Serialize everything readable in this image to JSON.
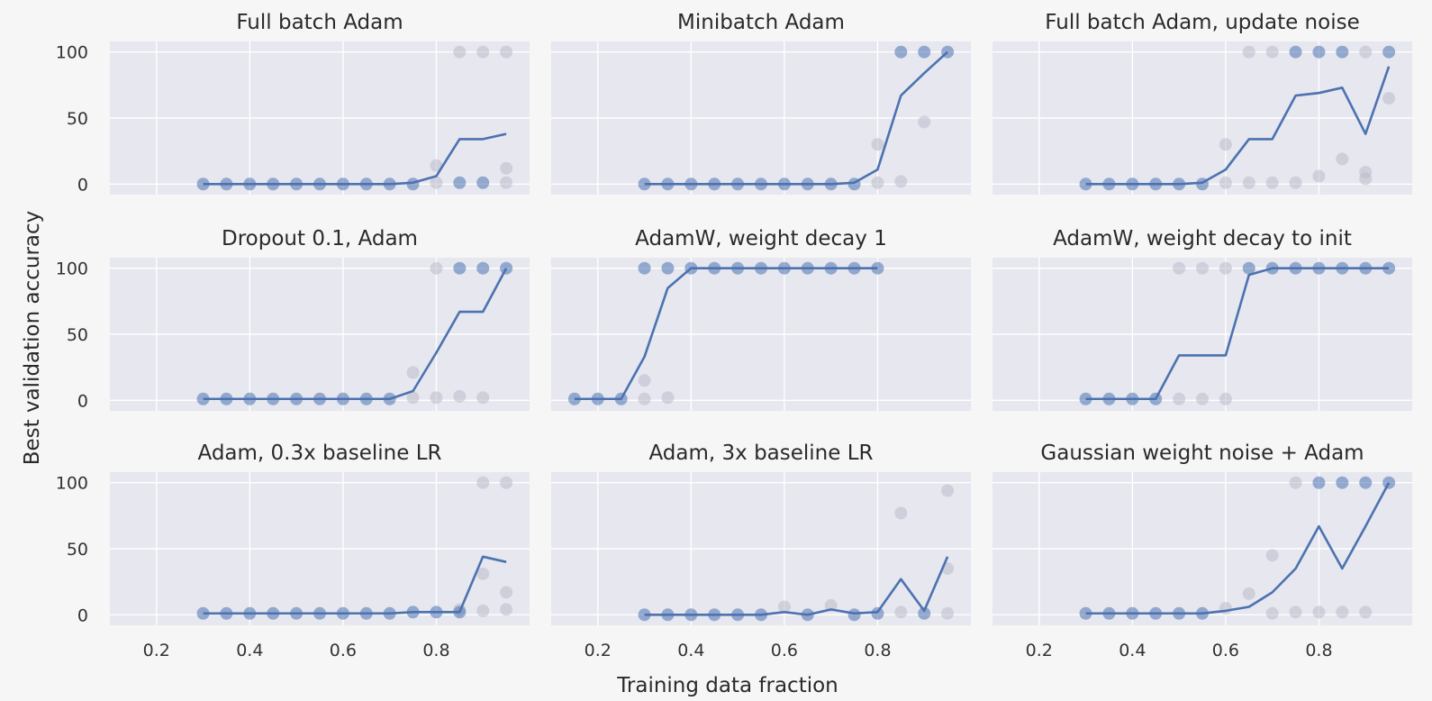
{
  "chart_data": {
    "type": "line",
    "ylabel": "Best validation accuracy",
    "xlabel": "Training data fraction",
    "xlim": [
      0.1,
      1.0
    ],
    "ylim": [
      -8,
      108
    ],
    "xticks": [
      "0.2",
      "0.4",
      "0.6",
      "0.8"
    ],
    "xtick_values": [
      0.2,
      0.4,
      0.6,
      0.8
    ],
    "yticks": [
      "0",
      "50",
      "100"
    ],
    "ytick_values": [
      0,
      50,
      100
    ],
    "grid": true,
    "colors": {
      "line": "#4c72b0",
      "point_blue": "#4c72b0",
      "point_gray": "#b9bcc8",
      "background": "#e6e7ef"
    },
    "panels": [
      {
        "title": "Full batch Adam",
        "line": {
          "x": [
            0.3,
            0.35,
            0.4,
            0.45,
            0.5,
            0.55,
            0.6,
            0.65,
            0.7,
            0.75,
            0.8,
            0.85,
            0.9,
            0.95
          ],
          "y": [
            0,
            0,
            0,
            0,
            0,
            0,
            0,
            0,
            0,
            1,
            6,
            34,
            34,
            38
          ]
        },
        "points_blue": [
          [
            0.3,
            0
          ],
          [
            0.35,
            0
          ],
          [
            0.4,
            0
          ],
          [
            0.45,
            0
          ],
          [
            0.5,
            0
          ],
          [
            0.55,
            0
          ],
          [
            0.6,
            0
          ],
          [
            0.65,
            0
          ],
          [
            0.7,
            0
          ],
          [
            0.75,
            0
          ],
          [
            0.85,
            1
          ],
          [
            0.9,
            1
          ]
        ],
        "points_gray": [
          [
            0.8,
            14
          ],
          [
            0.8,
            1
          ],
          [
            0.85,
            100
          ],
          [
            0.9,
            100
          ],
          [
            0.95,
            100
          ],
          [
            0.95,
            12
          ],
          [
            0.95,
            1
          ]
        ]
      },
      {
        "title": "Minibatch Adam",
        "line": {
          "x": [
            0.3,
            0.35,
            0.4,
            0.45,
            0.5,
            0.55,
            0.6,
            0.65,
            0.7,
            0.75,
            0.8,
            0.85,
            0.9,
            0.95
          ],
          "y": [
            0,
            0,
            0,
            0,
            0,
            0,
            0,
            0,
            0,
            1,
            11,
            67,
            84,
            100
          ]
        },
        "points_blue": [
          [
            0.3,
            0
          ],
          [
            0.35,
            0
          ],
          [
            0.4,
            0
          ],
          [
            0.45,
            0
          ],
          [
            0.5,
            0
          ],
          [
            0.55,
            0
          ],
          [
            0.6,
            0
          ],
          [
            0.65,
            0
          ],
          [
            0.7,
            0
          ],
          [
            0.75,
            0
          ],
          [
            0.85,
            100
          ],
          [
            0.9,
            100
          ],
          [
            0.95,
            100
          ]
        ],
        "points_gray": [
          [
            0.8,
            30
          ],
          [
            0.8,
            1
          ],
          [
            0.85,
            2
          ],
          [
            0.9,
            47
          ]
        ]
      },
      {
        "title": "Full batch Adam, update noise",
        "line": {
          "x": [
            0.3,
            0.35,
            0.4,
            0.45,
            0.5,
            0.55,
            0.6,
            0.65,
            0.7,
            0.75,
            0.8,
            0.85,
            0.9,
            0.95
          ],
          "y": [
            0,
            0,
            0,
            0,
            0,
            1,
            11,
            34,
            34,
            67,
            69,
            73,
            38,
            89
          ]
        },
        "points_blue": [
          [
            0.3,
            0
          ],
          [
            0.35,
            0
          ],
          [
            0.4,
            0
          ],
          [
            0.45,
            0
          ],
          [
            0.5,
            0
          ],
          [
            0.55,
            0
          ],
          [
            0.75,
            100
          ],
          [
            0.8,
            100
          ],
          [
            0.85,
            100
          ],
          [
            0.95,
            100
          ]
        ],
        "points_gray": [
          [
            0.6,
            30
          ],
          [
            0.6,
            1
          ],
          [
            0.65,
            100
          ],
          [
            0.65,
            1
          ],
          [
            0.7,
            100
          ],
          [
            0.7,
            1
          ],
          [
            0.75,
            1
          ],
          [
            0.8,
            6
          ],
          [
            0.85,
            19
          ],
          [
            0.9,
            100
          ],
          [
            0.9,
            9
          ],
          [
            0.9,
            4
          ],
          [
            0.95,
            65
          ]
        ]
      },
      {
        "title": "Dropout 0.1, Adam",
        "line": {
          "x": [
            0.3,
            0.35,
            0.4,
            0.45,
            0.5,
            0.55,
            0.6,
            0.65,
            0.7,
            0.75,
            0.8,
            0.85,
            0.9,
            0.95
          ],
          "y": [
            1,
            1,
            1,
            1,
            1,
            1,
            1,
            1,
            1,
            7,
            36,
            67,
            67,
            100
          ]
        },
        "points_blue": [
          [
            0.3,
            1
          ],
          [
            0.35,
            1
          ],
          [
            0.4,
            1
          ],
          [
            0.45,
            1
          ],
          [
            0.5,
            1
          ],
          [
            0.55,
            1
          ],
          [
            0.6,
            1
          ],
          [
            0.65,
            1
          ],
          [
            0.7,
            1
          ],
          [
            0.85,
            100
          ],
          [
            0.9,
            100
          ],
          [
            0.95,
            100
          ]
        ],
        "points_gray": [
          [
            0.75,
            21
          ],
          [
            0.75,
            2
          ],
          [
            0.8,
            100
          ],
          [
            0.8,
            2
          ],
          [
            0.85,
            3
          ],
          [
            0.9,
            2
          ]
        ]
      },
      {
        "title": "AdamW, weight decay 1",
        "line": {
          "x": [
            0.15,
            0.2,
            0.25,
            0.3,
            0.35,
            0.4,
            0.45,
            0.5,
            0.55,
            0.6,
            0.65,
            0.7,
            0.75,
            0.8
          ],
          "y": [
            1,
            1,
            1,
            33,
            85,
            100,
            100,
            100,
            100,
            100,
            100,
            100,
            100,
            100
          ]
        },
        "points_blue": [
          [
            0.15,
            1
          ],
          [
            0.2,
            1
          ],
          [
            0.25,
            1
          ],
          [
            0.3,
            100
          ],
          [
            0.35,
            100
          ],
          [
            0.4,
            100
          ],
          [
            0.45,
            100
          ],
          [
            0.5,
            100
          ],
          [
            0.55,
            100
          ],
          [
            0.6,
            100
          ],
          [
            0.65,
            100
          ],
          [
            0.7,
            100
          ],
          [
            0.75,
            100
          ],
          [
            0.8,
            100
          ]
        ],
        "points_gray": [
          [
            0.3,
            15
          ],
          [
            0.3,
            1
          ],
          [
            0.35,
            2
          ]
        ]
      },
      {
        "title": "AdamW, weight decay to init",
        "line": {
          "x": [
            0.3,
            0.35,
            0.4,
            0.45,
            0.5,
            0.55,
            0.6,
            0.65,
            0.7,
            0.75,
            0.8,
            0.85,
            0.9,
            0.95
          ],
          "y": [
            1,
            1,
            1,
            1,
            34,
            34,
            34,
            95,
            100,
            100,
            100,
            100,
            100,
            100
          ]
        },
        "points_blue": [
          [
            0.3,
            1
          ],
          [
            0.35,
            1
          ],
          [
            0.4,
            1
          ],
          [
            0.45,
            1
          ],
          [
            0.65,
            100
          ],
          [
            0.7,
            100
          ],
          [
            0.75,
            100
          ],
          [
            0.8,
            100
          ],
          [
            0.85,
            100
          ],
          [
            0.9,
            100
          ],
          [
            0.95,
            100
          ]
        ],
        "points_gray": [
          [
            0.5,
            100
          ],
          [
            0.5,
            1
          ],
          [
            0.55,
            100
          ],
          [
            0.55,
            1
          ],
          [
            0.6,
            100
          ],
          [
            0.6,
            1
          ]
        ]
      },
      {
        "title": "Adam, 0.3x baseline LR",
        "line": {
          "x": [
            0.3,
            0.35,
            0.4,
            0.45,
            0.5,
            0.55,
            0.6,
            0.65,
            0.7,
            0.75,
            0.8,
            0.85,
            0.9,
            0.95
          ],
          "y": [
            1,
            1,
            1,
            1,
            1,
            1,
            1,
            1,
            1,
            2,
            2,
            2,
            44,
            40
          ]
        },
        "points_blue": [
          [
            0.3,
            1
          ],
          [
            0.35,
            1
          ],
          [
            0.4,
            1
          ],
          [
            0.45,
            1
          ],
          [
            0.5,
            1
          ],
          [
            0.55,
            1
          ],
          [
            0.6,
            1
          ],
          [
            0.65,
            1
          ],
          [
            0.7,
            1
          ],
          [
            0.75,
            2
          ],
          [
            0.8,
            2
          ],
          [
            0.85,
            2
          ]
        ],
        "points_gray": [
          [
            0.85,
            4
          ],
          [
            0.9,
            100
          ],
          [
            0.9,
            31
          ],
          [
            0.9,
            3
          ],
          [
            0.95,
            100
          ],
          [
            0.95,
            17
          ],
          [
            0.95,
            4
          ]
        ]
      },
      {
        "title": "Adam, 3x baseline LR",
        "line": {
          "x": [
            0.3,
            0.35,
            0.4,
            0.45,
            0.5,
            0.55,
            0.6,
            0.65,
            0.7,
            0.75,
            0.8,
            0.85,
            0.9,
            0.95
          ],
          "y": [
            0,
            0,
            0,
            0,
            0,
            0,
            2,
            0,
            4,
            1,
            2,
            27,
            3,
            44
          ]
        },
        "points_blue": [
          [
            0.3,
            0
          ],
          [
            0.35,
            0
          ],
          [
            0.4,
            0
          ],
          [
            0.45,
            0
          ],
          [
            0.5,
            0
          ],
          [
            0.55,
            0
          ],
          [
            0.65,
            0
          ],
          [
            0.75,
            0
          ],
          [
            0.8,
            1
          ],
          [
            0.9,
            1
          ]
        ],
        "points_gray": [
          [
            0.6,
            6
          ],
          [
            0.7,
            7
          ],
          [
            0.85,
            77
          ],
          [
            0.85,
            2
          ],
          [
            0.95,
            94
          ],
          [
            0.95,
            35
          ],
          [
            0.95,
            1
          ]
        ]
      },
      {
        "title": "Gaussian weight noise + Adam",
        "line": {
          "x": [
            0.3,
            0.35,
            0.4,
            0.45,
            0.5,
            0.55,
            0.6,
            0.65,
            0.7,
            0.75,
            0.8,
            0.85,
            0.9,
            0.95
          ],
          "y": [
            1,
            1,
            1,
            1,
            1,
            1,
            3,
            6,
            17,
            35,
            67,
            35,
            67,
            100
          ]
        },
        "points_blue": [
          [
            0.3,
            1
          ],
          [
            0.35,
            1
          ],
          [
            0.4,
            1
          ],
          [
            0.45,
            1
          ],
          [
            0.5,
            1
          ],
          [
            0.55,
            1
          ],
          [
            0.8,
            100
          ],
          [
            0.85,
            100
          ],
          [
            0.9,
            100
          ],
          [
            0.95,
            100
          ]
        ],
        "points_gray": [
          [
            0.6,
            5
          ],
          [
            0.65,
            16
          ],
          [
            0.7,
            45
          ],
          [
            0.7,
            1
          ],
          [
            0.75,
            100
          ],
          [
            0.75,
            2
          ],
          [
            0.8,
            2
          ],
          [
            0.85,
            2
          ],
          [
            0.9,
            2
          ]
        ]
      }
    ]
  }
}
